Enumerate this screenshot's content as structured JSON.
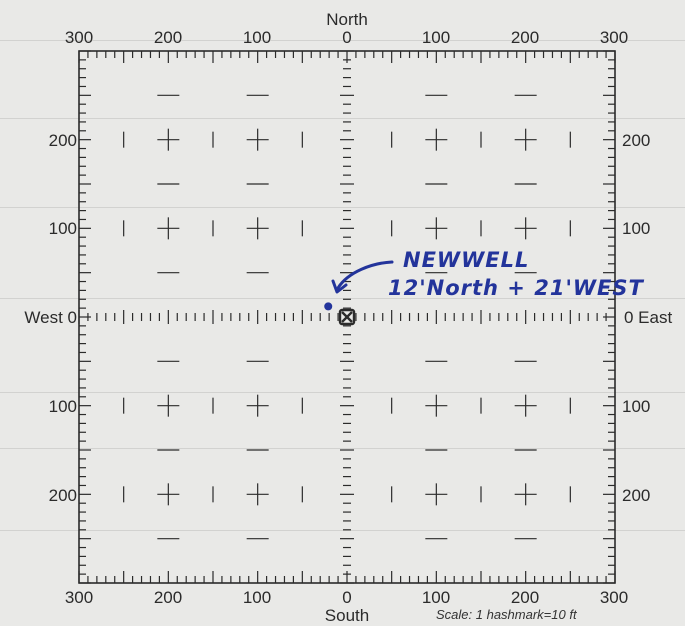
{
  "compass": {
    "north": "North",
    "south": "South",
    "west": "West",
    "east": "East"
  },
  "top_tick_labels": [
    "300",
    "200",
    "100",
    "0",
    "100",
    "200",
    "300"
  ],
  "bottom_tick_labels": [
    "300",
    "200",
    "100",
    "0",
    "100",
    "200",
    "300"
  ],
  "left_tick_labels": [
    "200",
    "100",
    "100",
    "200"
  ],
  "right_tick_labels": [
    "200",
    "100",
    "100",
    "200"
  ],
  "west_label": "West 0",
  "east_label": "0  East",
  "scale_note": "Scale:  1 hashmark=10 ft",
  "annotation": {
    "line1": "NEWWELL",
    "line2": "12'North + 21'WEST"
  },
  "well_location": {
    "north_ft": 12,
    "west_ft": 21
  },
  "colors": {
    "ink": "#2b2b2b",
    "annotation": "#23349b",
    "paper": "#e9e9e7"
  }
}
